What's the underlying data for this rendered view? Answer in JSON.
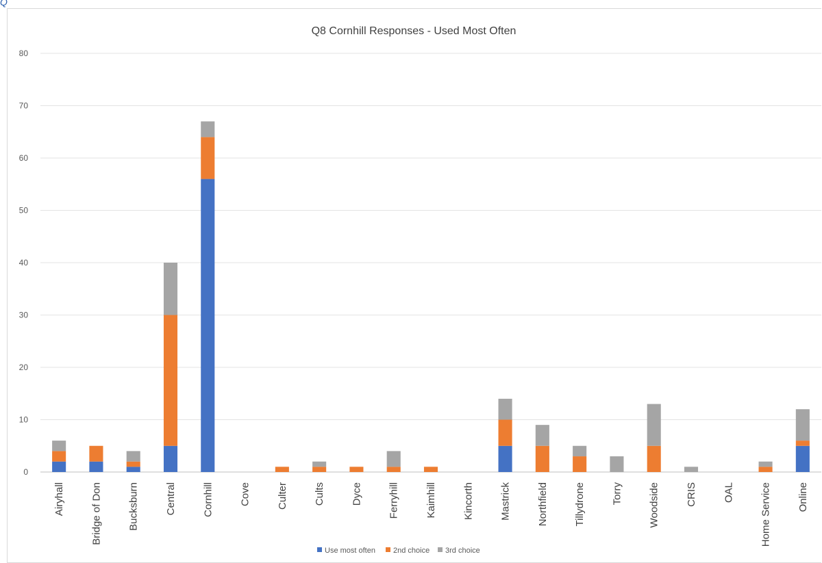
{
  "top_fragment": "Q",
  "chart_data": {
    "type": "bar",
    "stacked": true,
    "title": "Q8 Cornhill Responses - Used Most Often",
    "xlabel": "",
    "ylabel": "",
    "ylim": [
      0,
      80
    ],
    "yticks": [
      0,
      10,
      20,
      30,
      40,
      50,
      60,
      70,
      80
    ],
    "grid": true,
    "legend_position": "bottom",
    "categories": [
      "Airyhall",
      "Bridge of Don",
      "Bucksburn",
      "Central",
      "Cornhill",
      "Cove",
      "Culter",
      "Cults",
      "Dyce",
      "Ferryhill",
      "Kaimhill",
      "Kincorth",
      "Mastrick",
      "Northfield",
      "Tillydrone",
      "Torry",
      "Woodside",
      "CRIS",
      "OAL",
      "Home Service",
      "Online"
    ],
    "series": [
      {
        "name": "Use most often",
        "color": "#4472c4",
        "values": [
          2,
          2,
          1,
          5,
          56,
          0,
          0,
          0,
          0,
          0,
          0,
          0,
          5,
          0,
          0,
          0,
          0,
          0,
          0,
          0,
          5
        ]
      },
      {
        "name": "2nd choice",
        "color": "#ed7d31",
        "values": [
          2,
          3,
          1,
          25,
          8,
          0,
          1,
          1,
          1,
          1,
          1,
          0,
          5,
          5,
          3,
          0,
          5,
          0,
          0,
          1,
          1
        ]
      },
      {
        "name": "3rd choice",
        "color": "#a5a5a5",
        "values": [
          2,
          0,
          2,
          10,
          3,
          0,
          0,
          1,
          0,
          3,
          0,
          0,
          4,
          4,
          2,
          3,
          8,
          1,
          0,
          1,
          6
        ]
      }
    ]
  }
}
